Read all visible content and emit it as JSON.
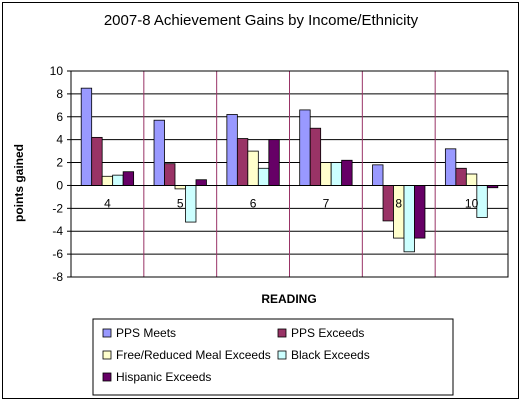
{
  "chart_data": {
    "type": "bar",
    "title": "2007-8 Achievement Gains by Income/Ethnicity",
    "xlabel": "READING",
    "ylabel": "points gained",
    "categories": [
      "4",
      "5",
      "6",
      "7",
      "8",
      "10"
    ],
    "ylim": [
      -8,
      10
    ],
    "ytick_step": 2,
    "grid": true,
    "legend_position": "bottom",
    "plot_background": "#ffffff",
    "series": [
      {
        "name": "PPS Meets",
        "color": "#9999ff",
        "values": [
          8.5,
          5.7,
          6.2,
          6.6,
          1.8,
          3.2
        ]
      },
      {
        "name": "PPS Exceeds",
        "color": "#993366",
        "values": [
          4.2,
          1.9,
          4.1,
          5.0,
          -3.1,
          1.5
        ]
      },
      {
        "name": "Free/Reduced Meal Exceeds",
        "color": "#ffffcc",
        "values": [
          0.8,
          -0.3,
          3.0,
          2.0,
          -4.6,
          1.0
        ]
      },
      {
        "name": "Black Exceeds",
        "color": "#ccffff",
        "values": [
          0.9,
          -3.2,
          1.5,
          2.0,
          -5.8,
          -2.8
        ]
      },
      {
        "name": "Hispanic Exceeds",
        "color": "#660066",
        "values": [
          1.2,
          0.5,
          4.0,
          2.2,
          -4.6,
          -0.2
        ]
      }
    ]
  }
}
